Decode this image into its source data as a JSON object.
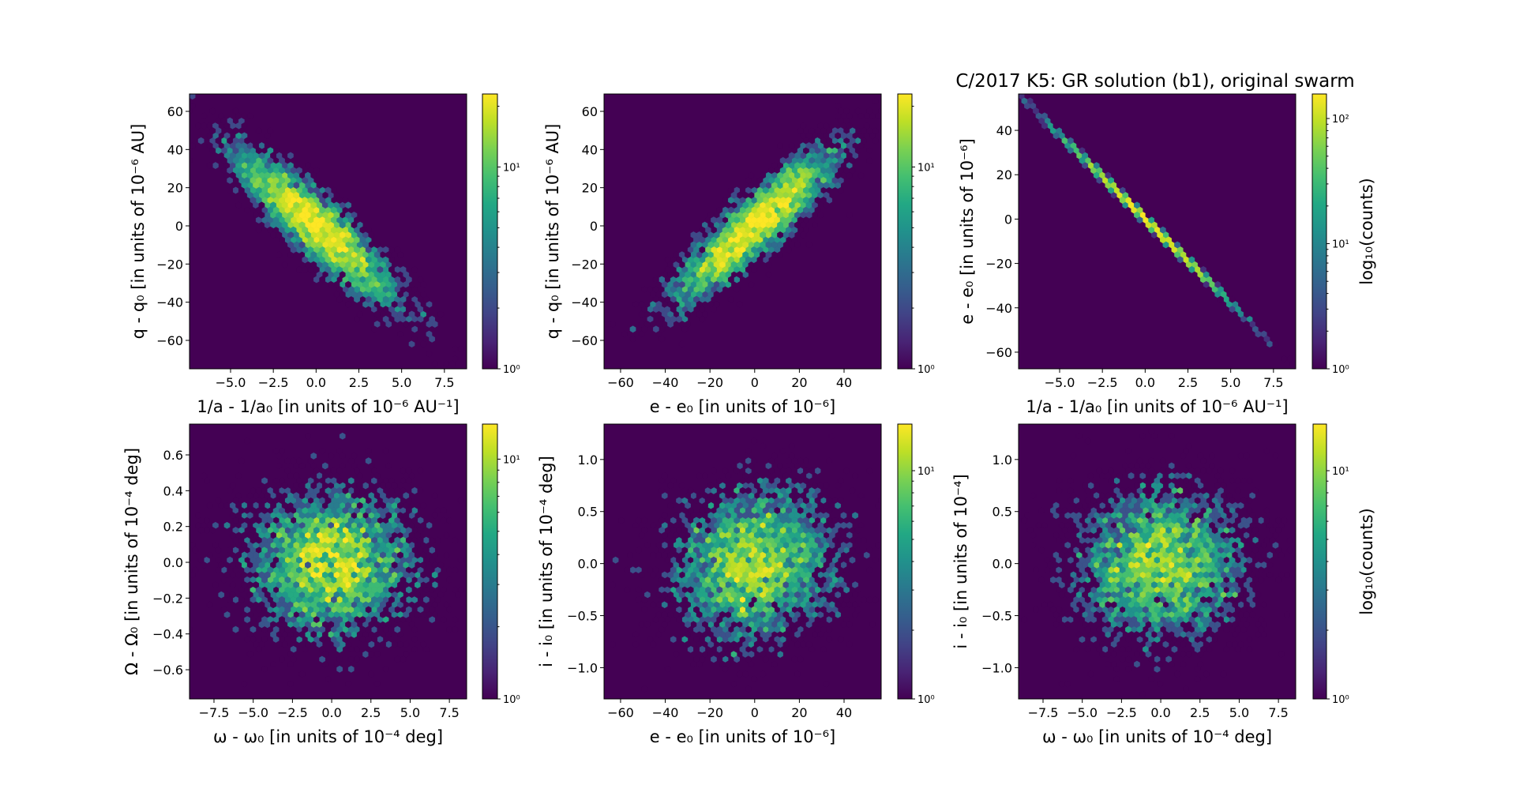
{
  "title": "C/2017 K5: GR solution (b1), original swarm",
  "colorbar_label": "log₁₀(counts)",
  "colormap": "viridis",
  "colors": {
    "background": "#440154",
    "low": "#440154",
    "high": "#fde725"
  },
  "chart_data": [
    {
      "type": "hexbin",
      "xlabel": "1/a - 1/a₀ [in units of 10⁻⁶ AU⁻¹]",
      "ylabel": "q - q₀ [in units of 10⁻⁶ AU]",
      "xlim": [
        -7.4,
        8.8
      ],
      "ylim": [
        -74.9,
        69.1
      ],
      "xticks": [
        -5.0,
        -2.5,
        0.0,
        2.5,
        5.0,
        7.5
      ],
      "xtick_labels": [
        "−5.0",
        "−2.5",
        "0.0",
        "2.5",
        "5.0",
        "7.5"
      ],
      "yticks": [
        -60,
        -40,
        -20,
        0,
        20,
        40,
        60
      ],
      "ytick_labels": [
        "−60",
        "−40",
        "−20",
        "0",
        "20",
        "40",
        "60"
      ],
      "distribution": {
        "x_center": 0,
        "y_center": 0,
        "x_std": 2.5,
        "y_std": 21,
        "correlation": -0.9
      },
      "colorbar": {
        "scale": "log",
        "range": [
          1,
          23
        ],
        "ticks": [
          1,
          10
        ],
        "tick_labels": [
          "10⁰",
          "10¹"
        ],
        "label": ""
      }
    },
    {
      "type": "hexbin",
      "xlabel": "e - e₀ [in units of 10⁻⁶]",
      "ylabel": "q - q₀ [in units of 10⁻⁶ AU]",
      "xlim": [
        -67.4,
        56.6
      ],
      "ylim": [
        -74.9,
        69.1
      ],
      "xticks": [
        -60,
        -40,
        -20,
        0,
        20,
        40
      ],
      "xtick_labels": [
        "−60",
        "−40",
        "−20",
        "0",
        "20",
        "40"
      ],
      "yticks": [
        -60,
        -40,
        -20,
        0,
        20,
        40,
        60
      ],
      "ytick_labels": [
        "−60",
        "−40",
        "−20",
        "0",
        "20",
        "40",
        "60"
      ],
      "distribution": {
        "x_center": 0,
        "y_center": 0,
        "x_std": 19,
        "y_std": 21,
        "correlation": 0.9
      },
      "colorbar": {
        "scale": "log",
        "range": [
          1,
          23
        ],
        "ticks": [
          1,
          10
        ],
        "tick_labels": [
          "10⁰",
          "10¹"
        ],
        "label": ""
      }
    },
    {
      "type": "hexbin",
      "xlabel": "1/a - 1/a₀ [in units of 10⁻⁶ AU⁻¹]",
      "ylabel": "e - e₀ [in units of 10⁻⁶]",
      "xlim": [
        -7.4,
        8.8
      ],
      "ylim": [
        -67.5,
        56.4
      ],
      "xticks": [
        -5.0,
        -2.5,
        0.0,
        2.5,
        5.0,
        7.5
      ],
      "xtick_labels": [
        "−5.0",
        "−2.5",
        "0.0",
        "2.5",
        "5.0",
        "7.5"
      ],
      "yticks": [
        -60,
        -40,
        -20,
        0,
        20,
        40
      ],
      "ytick_labels": [
        "−60",
        "−40",
        "−20",
        "0",
        "20",
        "40"
      ],
      "distribution": {
        "x_center": 0,
        "y_center": 0,
        "x_std": 2.5,
        "y_std": 19,
        "correlation": -1.0
      },
      "colorbar": {
        "scale": "log",
        "range": [
          1,
          157
        ],
        "ticks": [
          1,
          10,
          100
        ],
        "tick_labels": [
          "10⁰",
          "10¹",
          "10²"
        ],
        "label": "log₁₀(counts)"
      }
    },
    {
      "type": "hexbin",
      "xlabel": "ω - ω₀ [in units of 10⁻⁴ deg]",
      "ylabel": "Ω - Ω₀ [in units of 10⁻⁴ deg]",
      "xlim": [
        -9.06,
        8.6
      ],
      "ylim": [
        -0.763,
        0.772
      ],
      "xticks": [
        -7.5,
        -5.0,
        -2.5,
        0.0,
        2.5,
        5.0,
        7.5
      ],
      "xtick_labels": [
        "−7.5",
        "−5.0",
        "−2.5",
        "0.0",
        "2.5",
        "5.0",
        "7.5"
      ],
      "yticks": [
        -0.6,
        -0.4,
        -0.2,
        0.0,
        0.2,
        0.4,
        0.6
      ],
      "ytick_labels": [
        "−0.6",
        "−0.4",
        "−0.2",
        "0.0",
        "0.2",
        "0.4",
        "0.6"
      ],
      "distribution": {
        "x_center": 0,
        "y_center": 0,
        "x_std": 2.8,
        "y_std": 0.22,
        "correlation": 0.0
      },
      "colorbar": {
        "scale": "log",
        "range": [
          1,
          14
        ],
        "ticks": [
          1,
          10
        ],
        "tick_labels": [
          "10⁰",
          "10¹"
        ],
        "label": ""
      }
    },
    {
      "type": "hexbin",
      "xlabel": "e - e₀ [in units of 10⁻⁶]",
      "ylabel": "i - i₀ [in units of 10⁻⁴ deg]",
      "xlim": [
        -67.4,
        56.6
      ],
      "ylim": [
        -1.3,
        1.34
      ],
      "xticks": [
        -60,
        -40,
        -20,
        0,
        20,
        40
      ],
      "xtick_labels": [
        "−60",
        "−40",
        "−20",
        "0",
        "20",
        "40"
      ],
      "yticks": [
        -1.0,
        -0.5,
        0.0,
        0.5,
        1.0
      ],
      "ytick_labels": [
        "−1.0",
        "−0.5",
        "0.0",
        "0.5",
        "1.0"
      ],
      "distribution": {
        "x_center": 0,
        "y_center": 0,
        "x_std": 19,
        "y_std": 0.38,
        "correlation": 0.1
      },
      "colorbar": {
        "scale": "log",
        "range": [
          1,
          16
        ],
        "ticks": [
          1,
          10
        ],
        "tick_labels": [
          "10⁰",
          "10¹"
        ],
        "label": ""
      }
    },
    {
      "type": "hexbin",
      "xlabel": "ω - ω₀ [in units of 10⁻⁴ deg]",
      "ylabel": "i - i₀ [in units of 10⁻⁴]",
      "xlim": [
        -9.06,
        8.6
      ],
      "ylim": [
        -1.3,
        1.34
      ],
      "xticks": [
        -7.5,
        -5.0,
        -2.5,
        0.0,
        2.5,
        5.0,
        7.5
      ],
      "xtick_labels": [
        "−7.5",
        "−5.0",
        "−2.5",
        "0.0",
        "2.5",
        "5.0",
        "7.5"
      ],
      "yticks": [
        -1.0,
        -0.5,
        0.0,
        0.5,
        1.0
      ],
      "ytick_labels": [
        "−1.0",
        "−0.5",
        "0.0",
        "0.5",
        "1.0"
      ],
      "distribution": {
        "x_center": 0,
        "y_center": 0,
        "x_std": 2.8,
        "y_std": 0.38,
        "correlation": 0.0
      },
      "colorbar": {
        "scale": "log",
        "range": [
          1,
          16
        ],
        "ticks": [
          1,
          10
        ],
        "tick_labels": [
          "10⁰",
          "10¹"
        ],
        "label": "log₁₀(counts)"
      }
    }
  ]
}
